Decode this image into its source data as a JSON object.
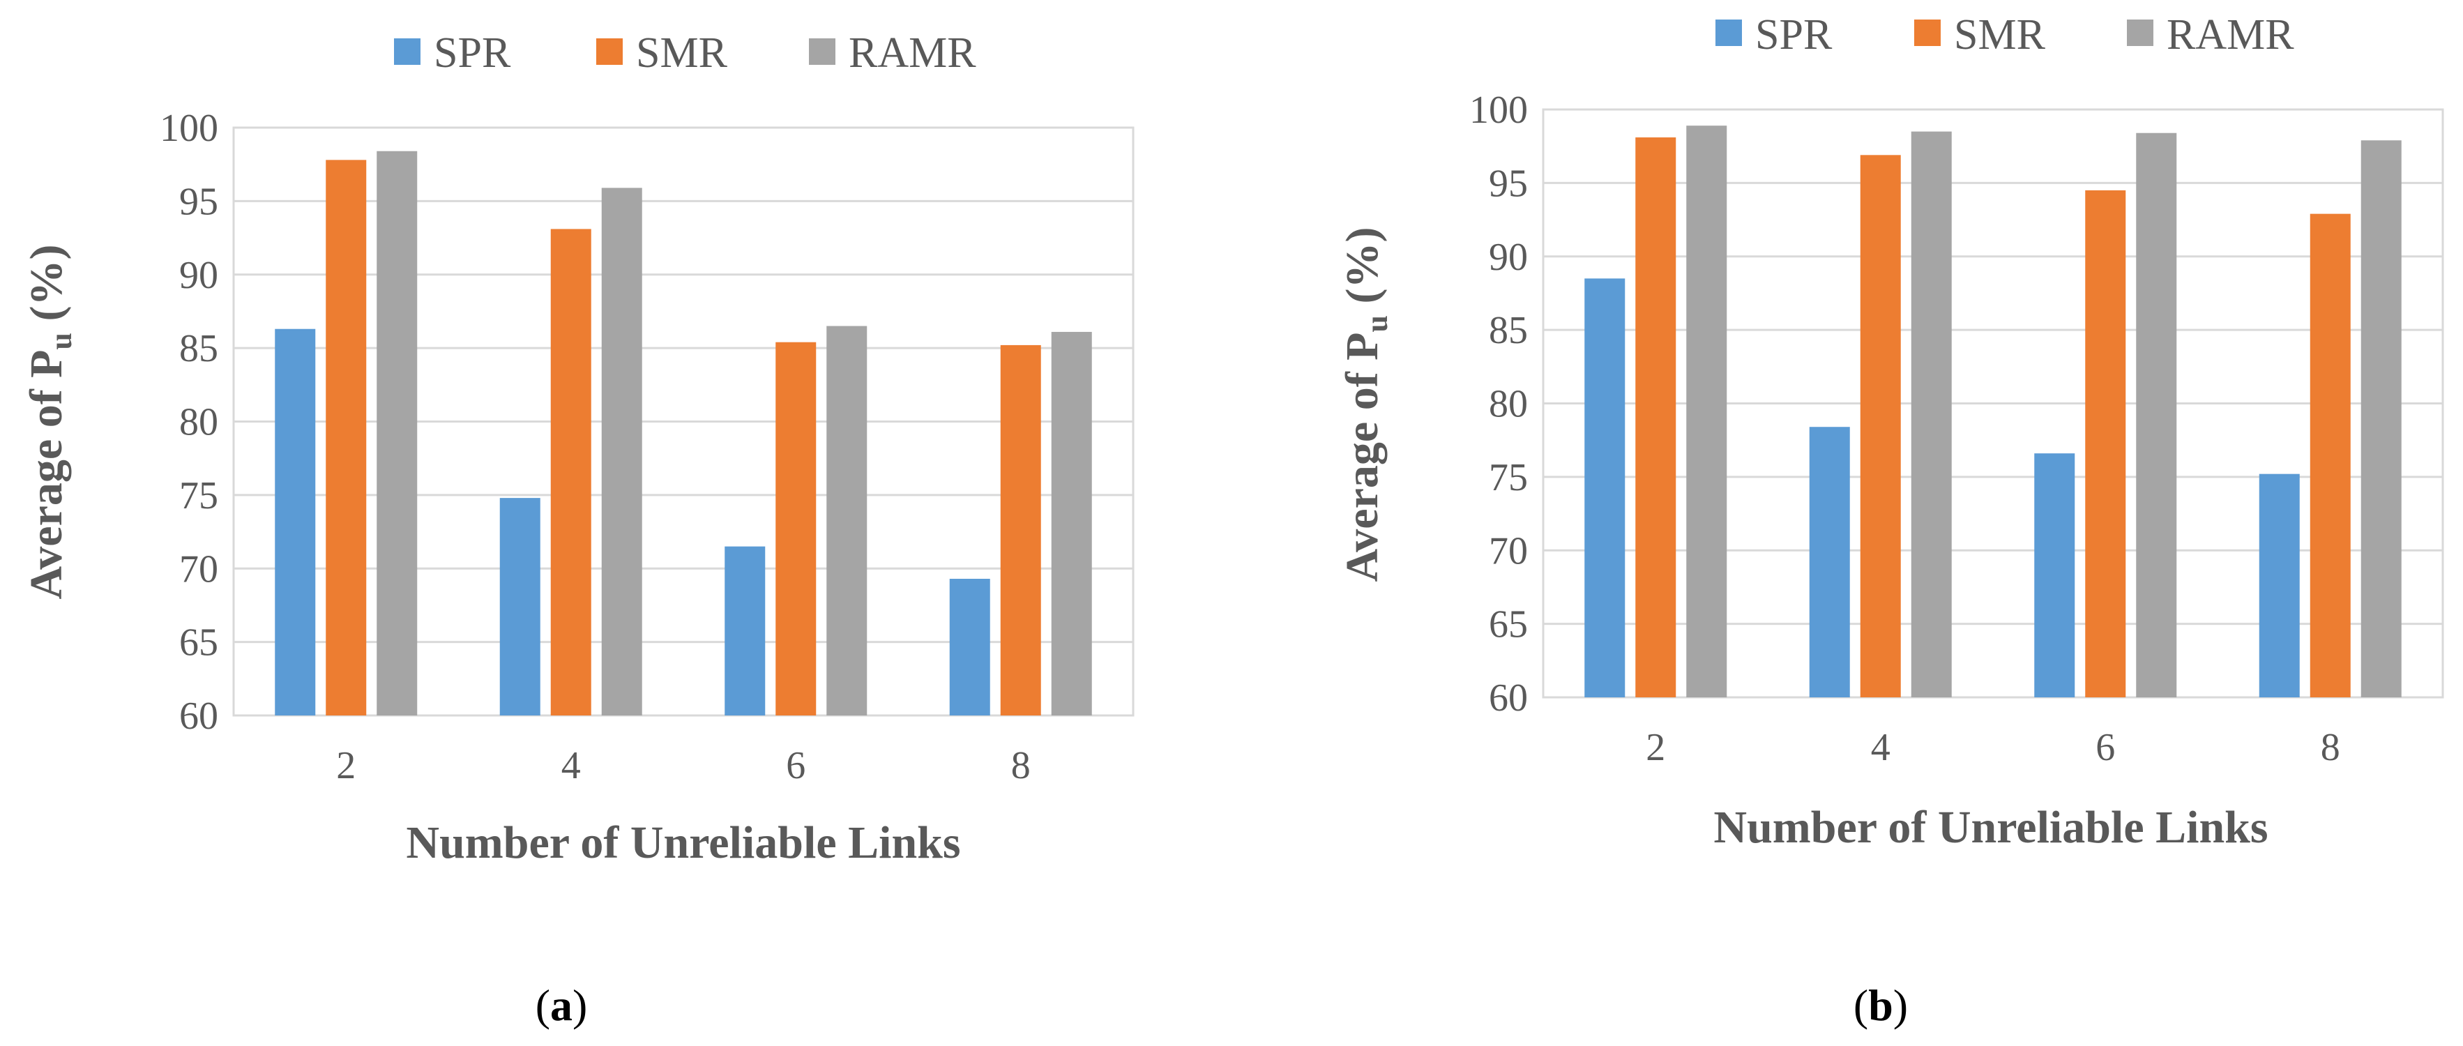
{
  "series_colors": [
    "#5B9BD5",
    "#ED7D31",
    "#A5A5A5"
  ],
  "chart_data": [
    {
      "type": "bar",
      "panel_label_open": "(",
      "panel_label_letter": "a",
      "panel_label_close": ")",
      "categories": [
        "2",
        "4",
        "6",
        "8"
      ],
      "series": [
        {
          "name": "SPR",
          "values": [
            86.3,
            74.8,
            71.5,
            69.3
          ]
        },
        {
          "name": "SMR",
          "values": [
            97.8,
            93.1,
            85.4,
            85.2
          ]
        },
        {
          "name": "RAMR",
          "values": [
            98.4,
            95.9,
            86.5,
            86.1
          ]
        }
      ],
      "xlabel": "Number of Unreliable Links",
      "ylabel_main": "Average of P",
      "ylabel_sub": "u",
      "ylabel_tail": " (%)",
      "ylim": [
        60,
        100
      ],
      "yticks": [
        "60",
        "65",
        "70",
        "75",
        "80",
        "85",
        "90",
        "95",
        "100"
      ],
      "legend_position": "top",
      "grid": true
    },
    {
      "type": "bar",
      "panel_label_open": "(",
      "panel_label_letter": "b",
      "panel_label_close": ")",
      "categories": [
        "2",
        "4",
        "6",
        "8"
      ],
      "series": [
        {
          "name": "SPR",
          "values": [
            88.5,
            78.4,
            76.6,
            75.2
          ]
        },
        {
          "name": "SMR",
          "values": [
            98.1,
            96.9,
            94.5,
            92.9
          ]
        },
        {
          "name": "RAMR",
          "values": [
            98.9,
            98.5,
            98.4,
            97.9
          ]
        }
      ],
      "xlabel": "Number of Unreliable Links",
      "ylabel_main": "Average of P",
      "ylabel_sub": "u",
      "ylabel_tail": " (%)",
      "ylim": [
        60,
        100
      ],
      "yticks": [
        "60",
        "65",
        "70",
        "75",
        "80",
        "85",
        "90",
        "95",
        "100"
      ],
      "legend_position": "top",
      "grid": true
    }
  ]
}
